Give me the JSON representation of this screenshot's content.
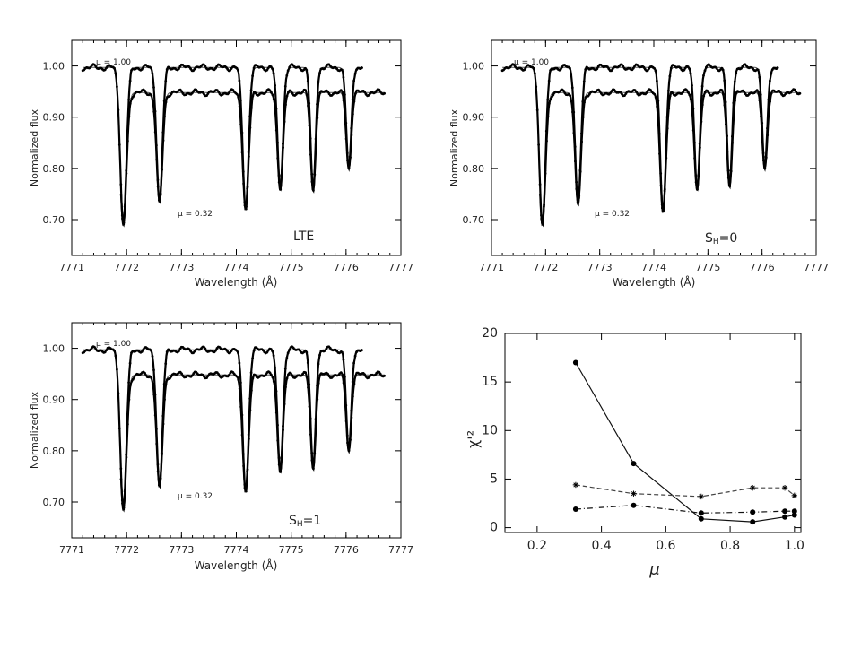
{
  "chart_data": [
    {
      "type": "line",
      "panel_label": "LTE",
      "xlabel": "Wavelength (Å)",
      "ylabel": "Normalized flux",
      "xlim": [
        7771,
        7777
      ],
      "ylim": [
        0.63,
        1.05
      ],
      "x_ticks": [
        "7771",
        "7772",
        "7773",
        "7774",
        "7775",
        "7776",
        "7777"
      ],
      "y_ticks": [
        "0.70",
        "0.80",
        "0.90",
        "1.00"
      ],
      "annotations": [
        "μ = 1.00",
        "μ = 0.32"
      ],
      "series": [
        {
          "mu": 1.0,
          "offset": 0.0,
          "range": [
            7771.2,
            7776.3
          ],
          "continuum": 0.997,
          "lines": [
            [
              7771.94,
              0.69,
              0.08
            ],
            [
              7772.6,
              0.735,
              0.075
            ],
            [
              7774.17,
              0.72,
              0.075
            ],
            [
              7774.8,
              0.76,
              0.07
            ],
            [
              7775.4,
              0.757,
              0.065
            ],
            [
              7776.05,
              0.8,
              0.065
            ]
          ]
        },
        {
          "mu": 0.32,
          "offset": 0.03,
          "range": [
            7771.9,
            7776.7
          ],
          "continuum": 0.948,
          "lines": [
            [
              7771.94,
              0.69,
              0.08
            ],
            [
              7772.6,
              0.735,
              0.075
            ],
            [
              7774.17,
              0.72,
              0.075
            ],
            [
              7774.8,
              0.76,
              0.07
            ],
            [
              7775.4,
              0.757,
              0.065
            ],
            [
              7776.05,
              0.8,
              0.065
            ]
          ]
        }
      ]
    },
    {
      "type": "line",
      "panel_label": "SH=0",
      "label_main": "S",
      "label_sub": "H",
      "label_tail": "=0",
      "xlabel": "Wavelength (Å)",
      "ylabel": "Normalized flux",
      "xlim": [
        7771,
        7777
      ],
      "ylim": [
        0.63,
        1.05
      ],
      "x_ticks": [
        "7771",
        "7772",
        "7773",
        "7774",
        "7775",
        "7776",
        "7777"
      ],
      "y_ticks": [
        "0.70",
        "0.80",
        "0.90",
        "1.00"
      ],
      "annotations": [
        "μ = 1.00",
        "μ = 0.32"
      ],
      "series": [
        {
          "mu": 1.0,
          "offset": 0.0,
          "range": [
            7771.2,
            7776.3
          ],
          "continuum": 0.997,
          "lines": [
            [
              7771.94,
              0.69,
              0.08
            ],
            [
              7772.6,
              0.73,
              0.075
            ],
            [
              7774.17,
              0.715,
              0.075
            ],
            [
              7774.8,
              0.76,
              0.07
            ],
            [
              7775.4,
              0.765,
              0.065
            ],
            [
              7776.05,
              0.8,
              0.065
            ]
          ]
        },
        {
          "mu": 0.32,
          "offset": 0.03,
          "range": [
            7771.9,
            7776.7
          ],
          "continuum": 0.948,
          "lines": [
            [
              7771.94,
              0.69,
              0.08
            ],
            [
              7772.6,
              0.73,
              0.075
            ],
            [
              7774.17,
              0.715,
              0.075
            ],
            [
              7774.8,
              0.76,
              0.07
            ],
            [
              7775.4,
              0.765,
              0.065
            ],
            [
              7776.05,
              0.8,
              0.065
            ]
          ]
        }
      ]
    },
    {
      "type": "line",
      "panel_label": "SH=1",
      "label_main": "S",
      "label_sub": "H",
      "label_tail": "=1",
      "xlabel": "Wavelength (Å)",
      "ylabel": "Normalized flux",
      "xlim": [
        7771,
        7777
      ],
      "ylim": [
        0.63,
        1.05
      ],
      "x_ticks": [
        "7771",
        "7772",
        "7773",
        "7774",
        "7775",
        "7776",
        "7777"
      ],
      "y_ticks": [
        "0.70",
        "0.80",
        "0.90",
        "1.00"
      ],
      "annotations": [
        "μ = 1.00",
        "μ = 0.32"
      ],
      "series": [
        {
          "mu": 1.0,
          "offset": 0.0,
          "range": [
            7771.2,
            7776.3
          ],
          "continuum": 0.997,
          "lines": [
            [
              7771.94,
              0.685,
              0.08
            ],
            [
              7772.6,
              0.73,
              0.075
            ],
            [
              7774.17,
              0.72,
              0.075
            ],
            [
              7774.8,
              0.76,
              0.07
            ],
            [
              7775.4,
              0.765,
              0.065
            ],
            [
              7776.05,
              0.8,
              0.065
            ]
          ]
        },
        {
          "mu": 0.32,
          "offset": 0.03,
          "range": [
            7771.9,
            7776.7
          ],
          "continuum": 0.948,
          "lines": [
            [
              7771.94,
              0.685,
              0.08
            ],
            [
              7772.6,
              0.73,
              0.075
            ],
            [
              7774.17,
              0.72,
              0.075
            ],
            [
              7774.8,
              0.76,
              0.07
            ],
            [
              7775.4,
              0.765,
              0.065
            ],
            [
              7776.05,
              0.8,
              0.065
            ]
          ]
        }
      ]
    },
    {
      "type": "line",
      "xlabel": "μ",
      "ylabel": "χ'²",
      "xlim": [
        0.1,
        1.02
      ],
      "ylim": [
        -0.5,
        20
      ],
      "x_ticks": [
        "0.2",
        "0.4",
        "0.6",
        "0.8",
        "1.0"
      ],
      "y_ticks": [
        "0",
        "5",
        "10",
        "15",
        "20"
      ],
      "series": [
        {
          "style": "solid",
          "marker": "dot",
          "x": [
            0.32,
            0.5,
            0.71,
            0.87,
            0.97,
            1.0
          ],
          "y": [
            17.0,
            6.6,
            0.9,
            0.6,
            1.1,
            1.3
          ]
        },
        {
          "style": "dashed",
          "marker": "star",
          "x": [
            0.32,
            0.5,
            0.71,
            0.87,
            0.97,
            1.0
          ],
          "y": [
            4.4,
            3.5,
            3.2,
            4.1,
            4.1,
            3.3
          ]
        },
        {
          "style": "dashdot",
          "marker": "dot",
          "x": [
            0.32,
            0.5,
            0.71,
            0.87,
            0.97,
            1.0
          ],
          "y": [
            1.9,
            2.3,
            1.5,
            1.6,
            1.7,
            1.7
          ]
        }
      ]
    }
  ]
}
